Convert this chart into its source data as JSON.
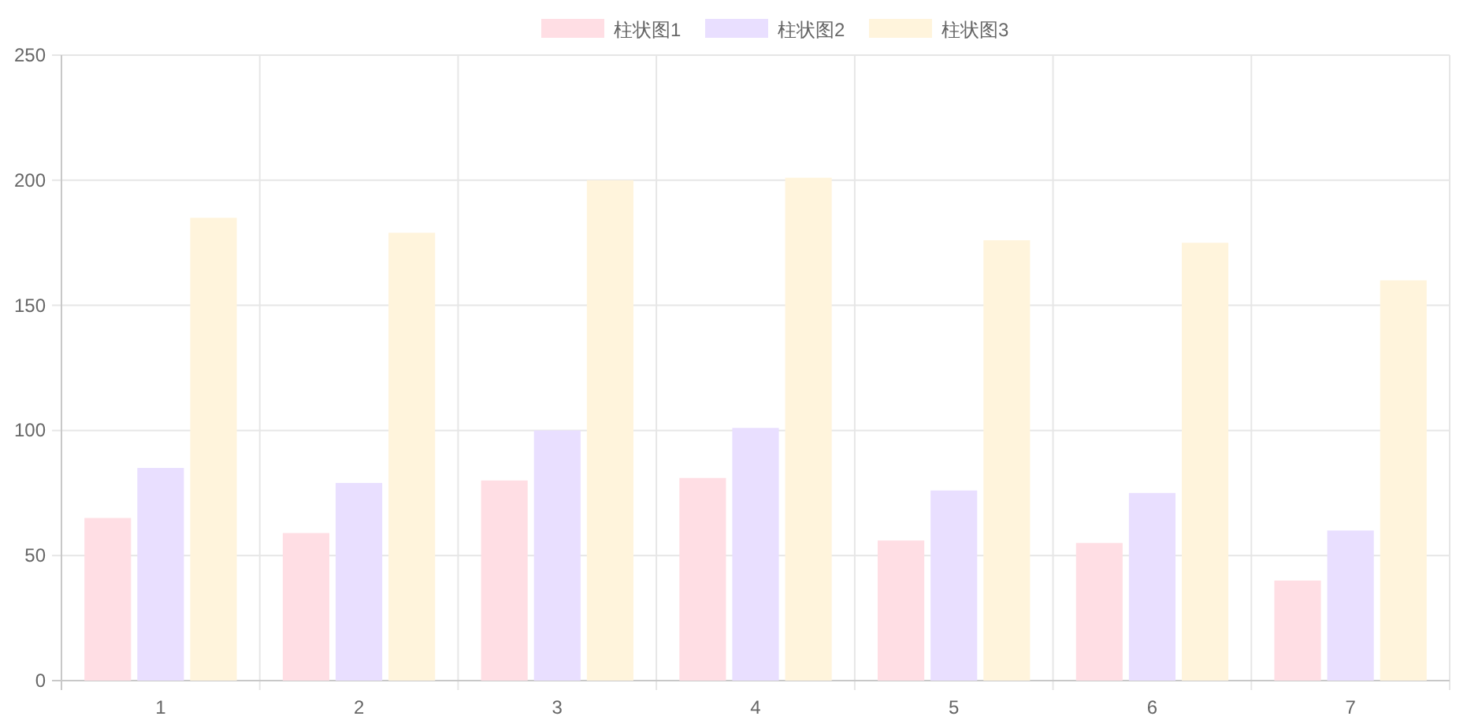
{
  "chart_data": {
    "type": "bar",
    "categories": [
      "1",
      "2",
      "3",
      "4",
      "5",
      "6",
      "7"
    ],
    "series": [
      {
        "name": "柱状图1",
        "color": "#ffdee4",
        "values": [
          65,
          59,
          80,
          81,
          56,
          55,
          40
        ]
      },
      {
        "name": "柱状图2",
        "color": "#e9dfff",
        "values": [
          85,
          79,
          100,
          101,
          76,
          75,
          60
        ]
      },
      {
        "name": "柱状图3",
        "color": "#fff4dc",
        "values": [
          185,
          179,
          200,
          201,
          176,
          175,
          160
        ]
      }
    ],
    "ylim": [
      0,
      250
    ],
    "yticks": [
      0,
      50,
      100,
      150,
      200,
      250
    ],
    "grid": true,
    "legend": "top"
  }
}
